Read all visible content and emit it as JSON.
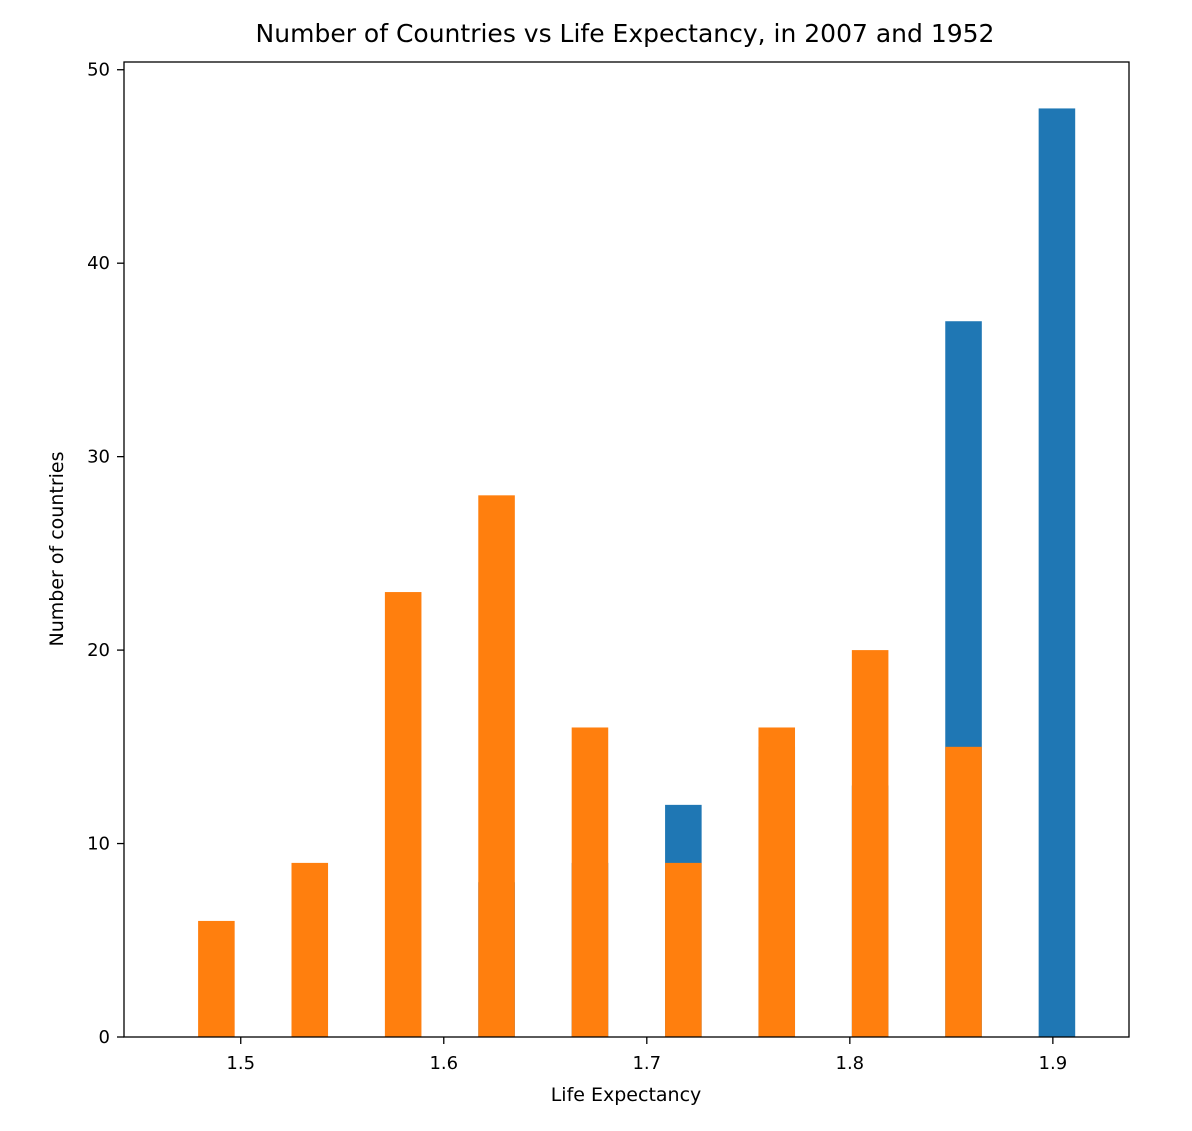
{
  "chart_data": {
    "type": "bar",
    "title": "Number of Countries vs Life Expectancy, in 2007 and 1952",
    "xlabel": "Life Expectancy",
    "ylabel": "Number of countries",
    "xlim": [
      1.4425,
      1.9375
    ],
    "ylim": [
      0,
      50.4
    ],
    "x_ticks": [
      {
        "value": 1.5,
        "label": "1.5"
      },
      {
        "value": 1.6,
        "label": "1.6"
      },
      {
        "value": 1.7,
        "label": "1.7"
      },
      {
        "value": 1.8,
        "label": "1.8"
      },
      {
        "value": 1.9,
        "label": "1.9"
      }
    ],
    "y_ticks": [
      {
        "value": 0,
        "label": "0"
      },
      {
        "value": 10,
        "label": "10"
      },
      {
        "value": 20,
        "label": "20"
      },
      {
        "value": 30,
        "label": "30"
      },
      {
        "value": 40,
        "label": "40"
      },
      {
        "value": 50,
        "label": "50"
      }
    ],
    "bar_width": 0.018,
    "grid": false,
    "series": [
      {
        "color": "#1f77b4",
        "bars": [
          {
            "x": 1.488,
            "value": 0
          },
          {
            "x": 1.534,
            "value": 0
          },
          {
            "x": 1.58,
            "value": 0
          },
          {
            "x": 1.626,
            "value": 8
          },
          {
            "x": 1.672,
            "value": 9
          },
          {
            "x": 1.718,
            "value": 12
          },
          {
            "x": 1.764,
            "value": 15
          },
          {
            "x": 1.81,
            "value": 13
          },
          {
            "x": 1.856,
            "value": 37
          },
          {
            "x": 1.902,
            "value": 48
          }
        ]
      },
      {
        "color": "#ff7f0e",
        "bars": [
          {
            "x": 1.488,
            "value": 6
          },
          {
            "x": 1.534,
            "value": 9
          },
          {
            "x": 1.58,
            "value": 23
          },
          {
            "x": 1.626,
            "value": 28
          },
          {
            "x": 1.672,
            "value": 16
          },
          {
            "x": 1.718,
            "value": 9
          },
          {
            "x": 1.764,
            "value": 16
          },
          {
            "x": 1.81,
            "value": 20
          },
          {
            "x": 1.856,
            "value": 15
          },
          {
            "x": 1.902,
            "value": 0
          }
        ]
      }
    ]
  }
}
